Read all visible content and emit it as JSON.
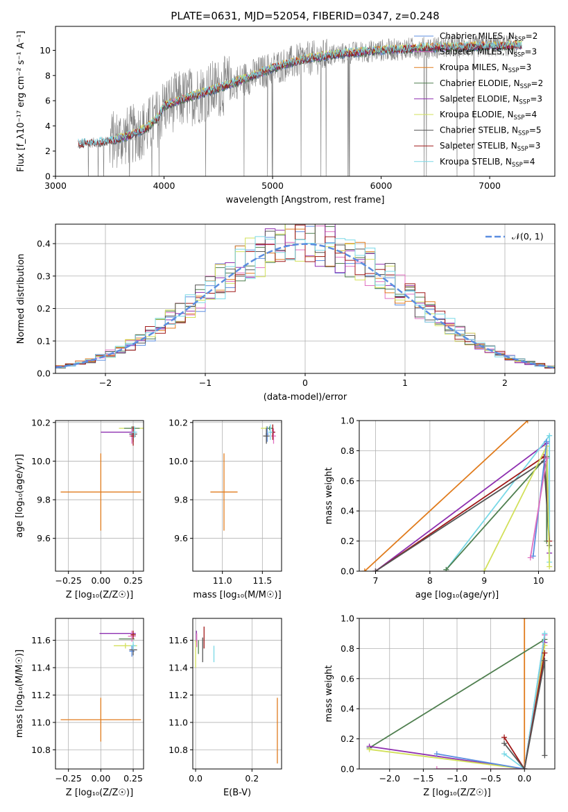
{
  "title": "PLATE=0631, MJD=52054, FIBERID=0347, z=0.248",
  "colors": {
    "Chabrier MILES": "#5b8de0",
    "Salpeter MILES": "#e06fc0",
    "Kroupa MILES": "#e07b1c",
    "Chabrier ELODIE": "#4f7f4f",
    "Salpeter ELODIE": "#8e2fb0",
    "Kroupa ELODIE": "#d2e05a",
    "Chabrier STELIB": "#555555",
    "Salpeter STELIB": "#a01818",
    "Kroupa STELIB": "#78d8e6",
    "data": "#808080",
    "gauss": "#5b8de0"
  },
  "chart_data": [
    {
      "id": "spectrum",
      "type": "line",
      "xlabel": "wavelength [Angstrom, rest frame]",
      "ylabel": "Flux [f_λ10⁻¹⁷ erg cm⁻² s⁻¹ A⁻¹]",
      "xlim": [
        3000,
        7600
      ],
      "ylim": [
        0,
        11.9
      ],
      "xticks": [
        "3000",
        "4000",
        "5000",
        "6000",
        "7000"
      ],
      "yticks": [
        "0",
        "2",
        "4",
        "6",
        "8",
        "10"
      ],
      "xtick_values": [
        3000,
        4000,
        5000,
        6000,
        7000
      ],
      "ytick_values": [
        0,
        2,
        4,
        6,
        8,
        10
      ],
      "legend_position": "upper right",
      "legend": [
        {
          "label": "Chabrier MILES, N_SSP=2",
          "name": "Chabrier MILES"
        },
        {
          "label": "Salpeter MILES, N_SSP=3",
          "name": "Salpeter MILES"
        },
        {
          "label": "Kroupa MILES, N_SSP=3",
          "name": "Kroupa MILES"
        },
        {
          "label": "Chabrier ELODIE, N_SSP=2",
          "name": "Chabrier ELODIE"
        },
        {
          "label": "Salpeter ELODIE, N_SSP=3",
          "name": "Salpeter ELODIE"
        },
        {
          "label": "Kroupa ELODIE, N_SSP=4",
          "name": "Kroupa ELODIE"
        },
        {
          "label": "Chabrier STELIB, N_SSP=5",
          "name": "Chabrier STELIB"
        },
        {
          "label": "Salpeter STELIB, N_SSP=3",
          "name": "Salpeter STELIB"
        },
        {
          "label": "Kroupa STELIB, N_SSP=4",
          "name": "Kroupa STELIB"
        }
      ],
      "data_spectrum_range": [
        3210,
        7250
      ],
      "model_continuum": [
        [
          3210,
          2.6
        ],
        [
          3400,
          2.7
        ],
        [
          3550,
          2.9
        ],
        [
          3700,
          3.3
        ],
        [
          3850,
          3.9
        ],
        [
          3950,
          4.7
        ],
        [
          4000,
          5.6
        ],
        [
          4200,
          6.2
        ],
        [
          4500,
          7.0
        ],
        [
          4800,
          7.9
        ],
        [
          5000,
          8.6
        ],
        [
          5300,
          9.3
        ],
        [
          5600,
          9.7
        ],
        [
          6000,
          10.0
        ],
        [
          6400,
          10.2
        ],
        [
          6800,
          10.3
        ],
        [
          7250,
          10.4
        ]
      ]
    },
    {
      "id": "residual-histogram",
      "type": "histogram",
      "xlabel": "(data-model)/error",
      "ylabel": "Normed distribution",
      "xlim": [
        -2.5,
        2.5
      ],
      "ylim": [
        0,
        0.46
      ],
      "xticks": [
        "−2",
        "−1",
        "0",
        "1",
        "2"
      ],
      "yticks": [
        "0.0",
        "0.1",
        "0.2",
        "0.3",
        "0.4"
      ],
      "xtick_values": [
        -2,
        -1,
        0,
        1,
        2
      ],
      "ytick_values": [
        0,
        0.1,
        0.2,
        0.3,
        0.4
      ],
      "bin_width": 0.1,
      "legend": [
        {
          "label": "𝒩(0, 1)"
        }
      ],
      "gaussian": {
        "mu": 0,
        "sigma": 1
      }
    },
    {
      "id": "age-vs-Z",
      "type": "errorbar",
      "xlabel": "Z [log₁₀(Z/Z☉)]",
      "ylabel": "age  [log₁₀(age/yr)]",
      "xlim": [
        -0.35,
        0.33
      ],
      "ylim": [
        9.43,
        10.21
      ],
      "xticks": [
        "−0.25",
        "0.00",
        "0.25"
      ],
      "xtick_values": [
        -0.25,
        0,
        0.25
      ],
      "yticks": [
        "9.6",
        "9.8",
        "10.0",
        "10.2"
      ],
      "ytick_values": [
        9.6,
        9.8,
        10.0,
        10.2
      ],
      "points": [
        {
          "model": "Kroupa MILES",
          "x": 0.0,
          "xerr": 0.31,
          "y": 9.84,
          "yerr": 0.2
        },
        {
          "model": "Kroupa ELODIE",
          "x": 0.25,
          "xerr": 0.11,
          "y": 10.17,
          "yerr": 0.01
        },
        {
          "model": "Chabrier ELODIE",
          "x": 0.24,
          "xerr": 0.06,
          "y": 10.17,
          "yerr": 0.01
        },
        {
          "model": "Salpeter ELODIE",
          "x": 0.0,
          "xerr": 0.0,
          "y": 10.15,
          "yerr": 0.0,
          "hline": [
            -0.0,
            0.27
          ]
        },
        {
          "model": "Chabrier MILES",
          "x": 0.24,
          "xerr": 0.02,
          "y": 10.14,
          "yerr": 0.03
        },
        {
          "model": "Salpeter MILES",
          "x": 0.24,
          "xerr": 0.02,
          "y": 10.13,
          "yerr": 0.04
        },
        {
          "model": "Chabrier STELIB",
          "x": 0.25,
          "xerr": 0.03,
          "y": 10.14,
          "yerr": 0.04
        },
        {
          "model": "Salpeter STELIB",
          "x": 0.25,
          "xerr": 0.02,
          "y": 10.13,
          "yerr": 0.05
        },
        {
          "model": "Kroupa STELIB",
          "x": 0.26,
          "xerr": 0.02,
          "y": 10.15,
          "yerr": 0.03
        }
      ]
    },
    {
      "id": "age-vs-mass",
      "type": "errorbar",
      "xlabel": "mass [log₁₀(M/M☉)]",
      "xlim": [
        10.63,
        11.74
      ],
      "ylim": [
        9.43,
        10.21
      ],
      "xticks": [
        "11.0",
        "11.5"
      ],
      "xtick_values": [
        11.0,
        11.5
      ],
      "yticks": [
        "9.6",
        "9.8",
        "10.0",
        "10.2"
      ],
      "ytick_values": [
        9.6,
        9.8,
        10.0,
        10.2
      ],
      "points": [
        {
          "model": "Kroupa MILES",
          "x": 11.02,
          "xerr": 0.17,
          "y": 9.84,
          "yerr": 0.2
        },
        {
          "model": "Kroupa ELODIE",
          "x": 11.55,
          "xerr": 0.07,
          "y": 10.17,
          "yerr": 0.01
        },
        {
          "model": "Chabrier ELODIE",
          "x": 11.59,
          "xerr": 0.04,
          "y": 10.17,
          "yerr": 0.01
        },
        {
          "model": "Salpeter ELODIE",
          "x": 11.63,
          "xerr": 0.03,
          "y": 10.15,
          "yerr": 0.02
        },
        {
          "model": "Chabrier MILES",
          "x": 11.56,
          "xerr": 0.02,
          "y": 10.14,
          "yerr": 0.04
        },
        {
          "model": "Salpeter MILES",
          "x": 11.64,
          "xerr": 0.03,
          "y": 10.13,
          "yerr": 0.04
        },
        {
          "model": "Chabrier STELIB",
          "x": 11.55,
          "xerr": 0.04,
          "y": 10.13,
          "yerr": 0.04
        },
        {
          "model": "Salpeter STELIB",
          "x": 11.63,
          "xerr": 0.03,
          "y": 10.15,
          "yerr": 0.04
        },
        {
          "model": "Kroupa STELIB",
          "x": 11.6,
          "xerr": 0.03,
          "y": 10.15,
          "yerr": 0.04
        }
      ]
    },
    {
      "id": "massweight-vs-age",
      "type": "line",
      "xlabel": "age  [log₁₀(age/yr)]",
      "ylabel": "mass weight",
      "xlim": [
        6.7,
        10.3
      ],
      "ylim": [
        0,
        1.0
      ],
      "xticks": [
        "7",
        "8",
        "9",
        "10"
      ],
      "xtick_values": [
        7,
        8,
        9,
        10
      ],
      "yticks": [
        "0.0",
        "0.2",
        "0.4",
        "0.6",
        "0.8",
        "1.0"
      ],
      "ytick_values": [
        0,
        0.2,
        0.4,
        0.6,
        0.8,
        1.0
      ],
      "series": [
        {
          "name": "Kroupa MILES",
          "points": [
            [
              6.8,
              0.0
            ],
            [
              9.8,
              1.0
            ]
          ]
        },
        {
          "name": "Salpeter ELODIE",
          "points": [
            [
              7.0,
              0.0
            ],
            [
              10.15,
              0.85
            ],
            [
              10.2,
              0.12
            ]
          ]
        },
        {
          "name": "Kroupa STELIB",
          "points": [
            [
              8.3,
              0.01
            ],
            [
              10.2,
              0.9
            ],
            [
              10.2,
              0.06
            ]
          ]
        },
        {
          "name": "Chabrier ELODIE",
          "points": [
            [
              8.3,
              0.01
            ],
            [
              10.15,
              0.76
            ],
            [
              10.15,
              0.2
            ]
          ]
        },
        {
          "name": "Salpeter STELIB",
          "points": [
            [
              7.0,
              0.0
            ],
            [
              10.1,
              0.76
            ],
            [
              10.2,
              0.2
            ]
          ]
        },
        {
          "name": "Chabrier STELIB",
          "points": [
            [
              7.0,
              0.0
            ],
            [
              10.1,
              0.73
            ],
            [
              10.2,
              0.17
            ]
          ]
        },
        {
          "name": "Kroupa ELODIE",
          "points": [
            [
              9.0,
              0.0
            ],
            [
              10.15,
              0.83
            ],
            [
              10.2,
              0.03
            ]
          ]
        },
        {
          "name": "Chabrier MILES",
          "points": [
            [
              9.9,
              0.1
            ],
            [
              10.15,
              0.86
            ]
          ]
        },
        {
          "name": "Salpeter MILES",
          "points": [
            [
              9.85,
              0.09
            ],
            [
              10.15,
              0.75
            ]
          ]
        }
      ]
    },
    {
      "id": "mass-vs-Z",
      "type": "errorbar",
      "xlabel": "Z [log₁₀(Z/Z☉)]",
      "ylabel": "mass [log₁₀(M/M☉)]",
      "xlim": [
        -0.35,
        0.33
      ],
      "ylim": [
        10.66,
        11.76
      ],
      "xticks": [
        "−0.25",
        "0.00",
        "0.25"
      ],
      "xtick_values": [
        -0.25,
        0,
        0.25
      ],
      "yticks": [
        "10.8",
        "11.0",
        "11.2",
        "11.4",
        "11.6"
      ],
      "ytick_values": [
        10.8,
        11.0,
        11.2,
        11.4,
        11.6
      ],
      "points": [
        {
          "model": "Kroupa MILES",
          "x": 0.0,
          "xerr": 0.31,
          "y": 11.02,
          "yerr": 0.16
        },
        {
          "model": "Salpeter ELODIE",
          "x": 0.13,
          "xerr": 0.14,
          "y": 11.65,
          "yerr": 0.0
        },
        {
          "model": "Chabrier ELODIE",
          "x": 0.2,
          "xerr": 0.06,
          "y": 11.61,
          "yerr": 0.0
        },
        {
          "model": "Kroupa ELODIE",
          "x": 0.19,
          "xerr": 0.09,
          "y": 11.56,
          "yerr": 0.02
        },
        {
          "model": "Salpeter MILES",
          "x": 0.24,
          "xerr": 0.03,
          "y": 11.63,
          "yerr": 0.04
        },
        {
          "model": "Chabrier MILES",
          "x": 0.24,
          "xerr": 0.02,
          "y": 11.52,
          "yerr": 0.04
        },
        {
          "model": "Chabrier STELIB",
          "x": 0.25,
          "xerr": 0.03,
          "y": 11.53,
          "yerr": 0.04
        },
        {
          "model": "Salpeter STELIB",
          "x": 0.25,
          "xerr": 0.02,
          "y": 11.64,
          "yerr": 0.03
        },
        {
          "model": "Kroupa STELIB",
          "x": 0.25,
          "xerr": 0.02,
          "y": 11.56,
          "yerr": 0.03
        }
      ]
    },
    {
      "id": "mass-vs-EBV",
      "type": "errorbar",
      "xlabel": "E(B-V)",
      "xlim": [
        -0.01,
        0.305
      ],
      "ylim": [
        10.66,
        11.76
      ],
      "xticks": [
        "0.0",
        "0.2"
      ],
      "xtick_values": [
        0.0,
        0.2
      ],
      "yticks": [
        "10.8",
        "11.0",
        "11.2",
        "11.4",
        "11.6"
      ],
      "ytick_values": [
        10.8,
        11.0,
        11.2,
        11.4,
        11.6
      ],
      "points": [
        {
          "model": "Kroupa MILES",
          "x": 0.29,
          "xerr": 0,
          "y": 10.94,
          "yerr": 0.24
        },
        {
          "model": "Salpeter ELODIE",
          "x": 0.003,
          "xerr": 0,
          "y": 11.63,
          "yerr": 0.04
        },
        {
          "model": "Kroupa ELODIE",
          "x": 0.0,
          "xerr": 0,
          "y": 11.5,
          "yerr": 0.1
        },
        {
          "model": "Salpeter MILES",
          "x": 0.004,
          "xerr": 0,
          "y": 11.6,
          "yerr": 0.05
        },
        {
          "model": "Chabrier STELIB",
          "x": 0.025,
          "xerr": 0,
          "y": 11.53,
          "yerr": 0.09
        },
        {
          "model": "Salpeter STELIB",
          "x": 0.03,
          "xerr": 0,
          "y": 11.62,
          "yerr": 0.08
        },
        {
          "model": "Kroupa STELIB",
          "x": 0.065,
          "xerr": 0,
          "y": 11.5,
          "yerr": 0.06
        },
        {
          "model": "Chabrier ELODIE",
          "x": 0.01,
          "xerr": 0,
          "y": 11.55,
          "yerr": 0.05
        }
      ]
    },
    {
      "id": "massweight-vs-Z",
      "type": "line",
      "xlabel": "Z [log₁₀(Z/Z☉)]",
      "ylabel": "mass weight",
      "xlim": [
        -2.45,
        0.45
      ],
      "ylim": [
        0,
        1.0
      ],
      "xticks": [
        "−2.0",
        "−1.5",
        "−1.0",
        "−0.5",
        "0.0"
      ],
      "xtick_values": [
        -2.0,
        -1.5,
        -1.0,
        -0.5,
        0.0
      ],
      "yticks": [
        "0.0",
        "0.2",
        "0.4",
        "0.6",
        "0.8",
        "1.0"
      ],
      "ytick_values": [
        0,
        0.2,
        0.4,
        0.6,
        0.8,
        1.0
      ],
      "series": [
        {
          "name": "Kroupa MILES",
          "points": [
            [
              0.0,
              0.0
            ],
            [
              0.0,
              1.0
            ]
          ]
        },
        {
          "name": "Chabrier ELODIE",
          "points": [
            [
              -2.3,
              0.14
            ],
            [
              0.3,
              0.86
            ]
          ]
        },
        {
          "name": "Salpeter ELODIE",
          "points": [
            [
              -2.3,
              0.15
            ],
            [
              0.0,
              0.0
            ],
            [
              0.3,
              0.84
            ]
          ]
        },
        {
          "name": "Kroupa ELODIE",
          "points": [
            [
              -2.3,
              0.13
            ],
            [
              0.0,
              0.0
            ],
            [
              0.3,
              0.82
            ]
          ]
        },
        {
          "name": "Chabrier MILES",
          "points": [
            [
              -1.3,
              0.1
            ],
            [
              0.0,
              0.0
            ],
            [
              0.3,
              0.89
            ]
          ]
        },
        {
          "name": "Salpeter MILES",
          "points": [
            [
              -1.3,
              0.0
            ],
            [
              0.0,
              0.0
            ],
            [
              0.3,
              0.89
            ]
          ]
        },
        {
          "name": "Kroupa STELIB",
          "points": [
            [
              -0.3,
              0.1
            ],
            [
              0.0,
              0.0
            ],
            [
              0.3,
              0.9
            ]
          ]
        },
        {
          "name": "Salpeter STELIB",
          "points": [
            [
              -0.3,
              0.21
            ],
            [
              0.0,
              0.0
            ],
            [
              0.3,
              0.77
            ]
          ]
        },
        {
          "name": "Chabrier STELIB",
          "points": [
            [
              -0.3,
              0.17
            ],
            [
              0.0,
              0.0
            ],
            [
              0.3,
              0.72
            ],
            [
              0.3,
              0.09
            ]
          ]
        }
      ]
    }
  ]
}
